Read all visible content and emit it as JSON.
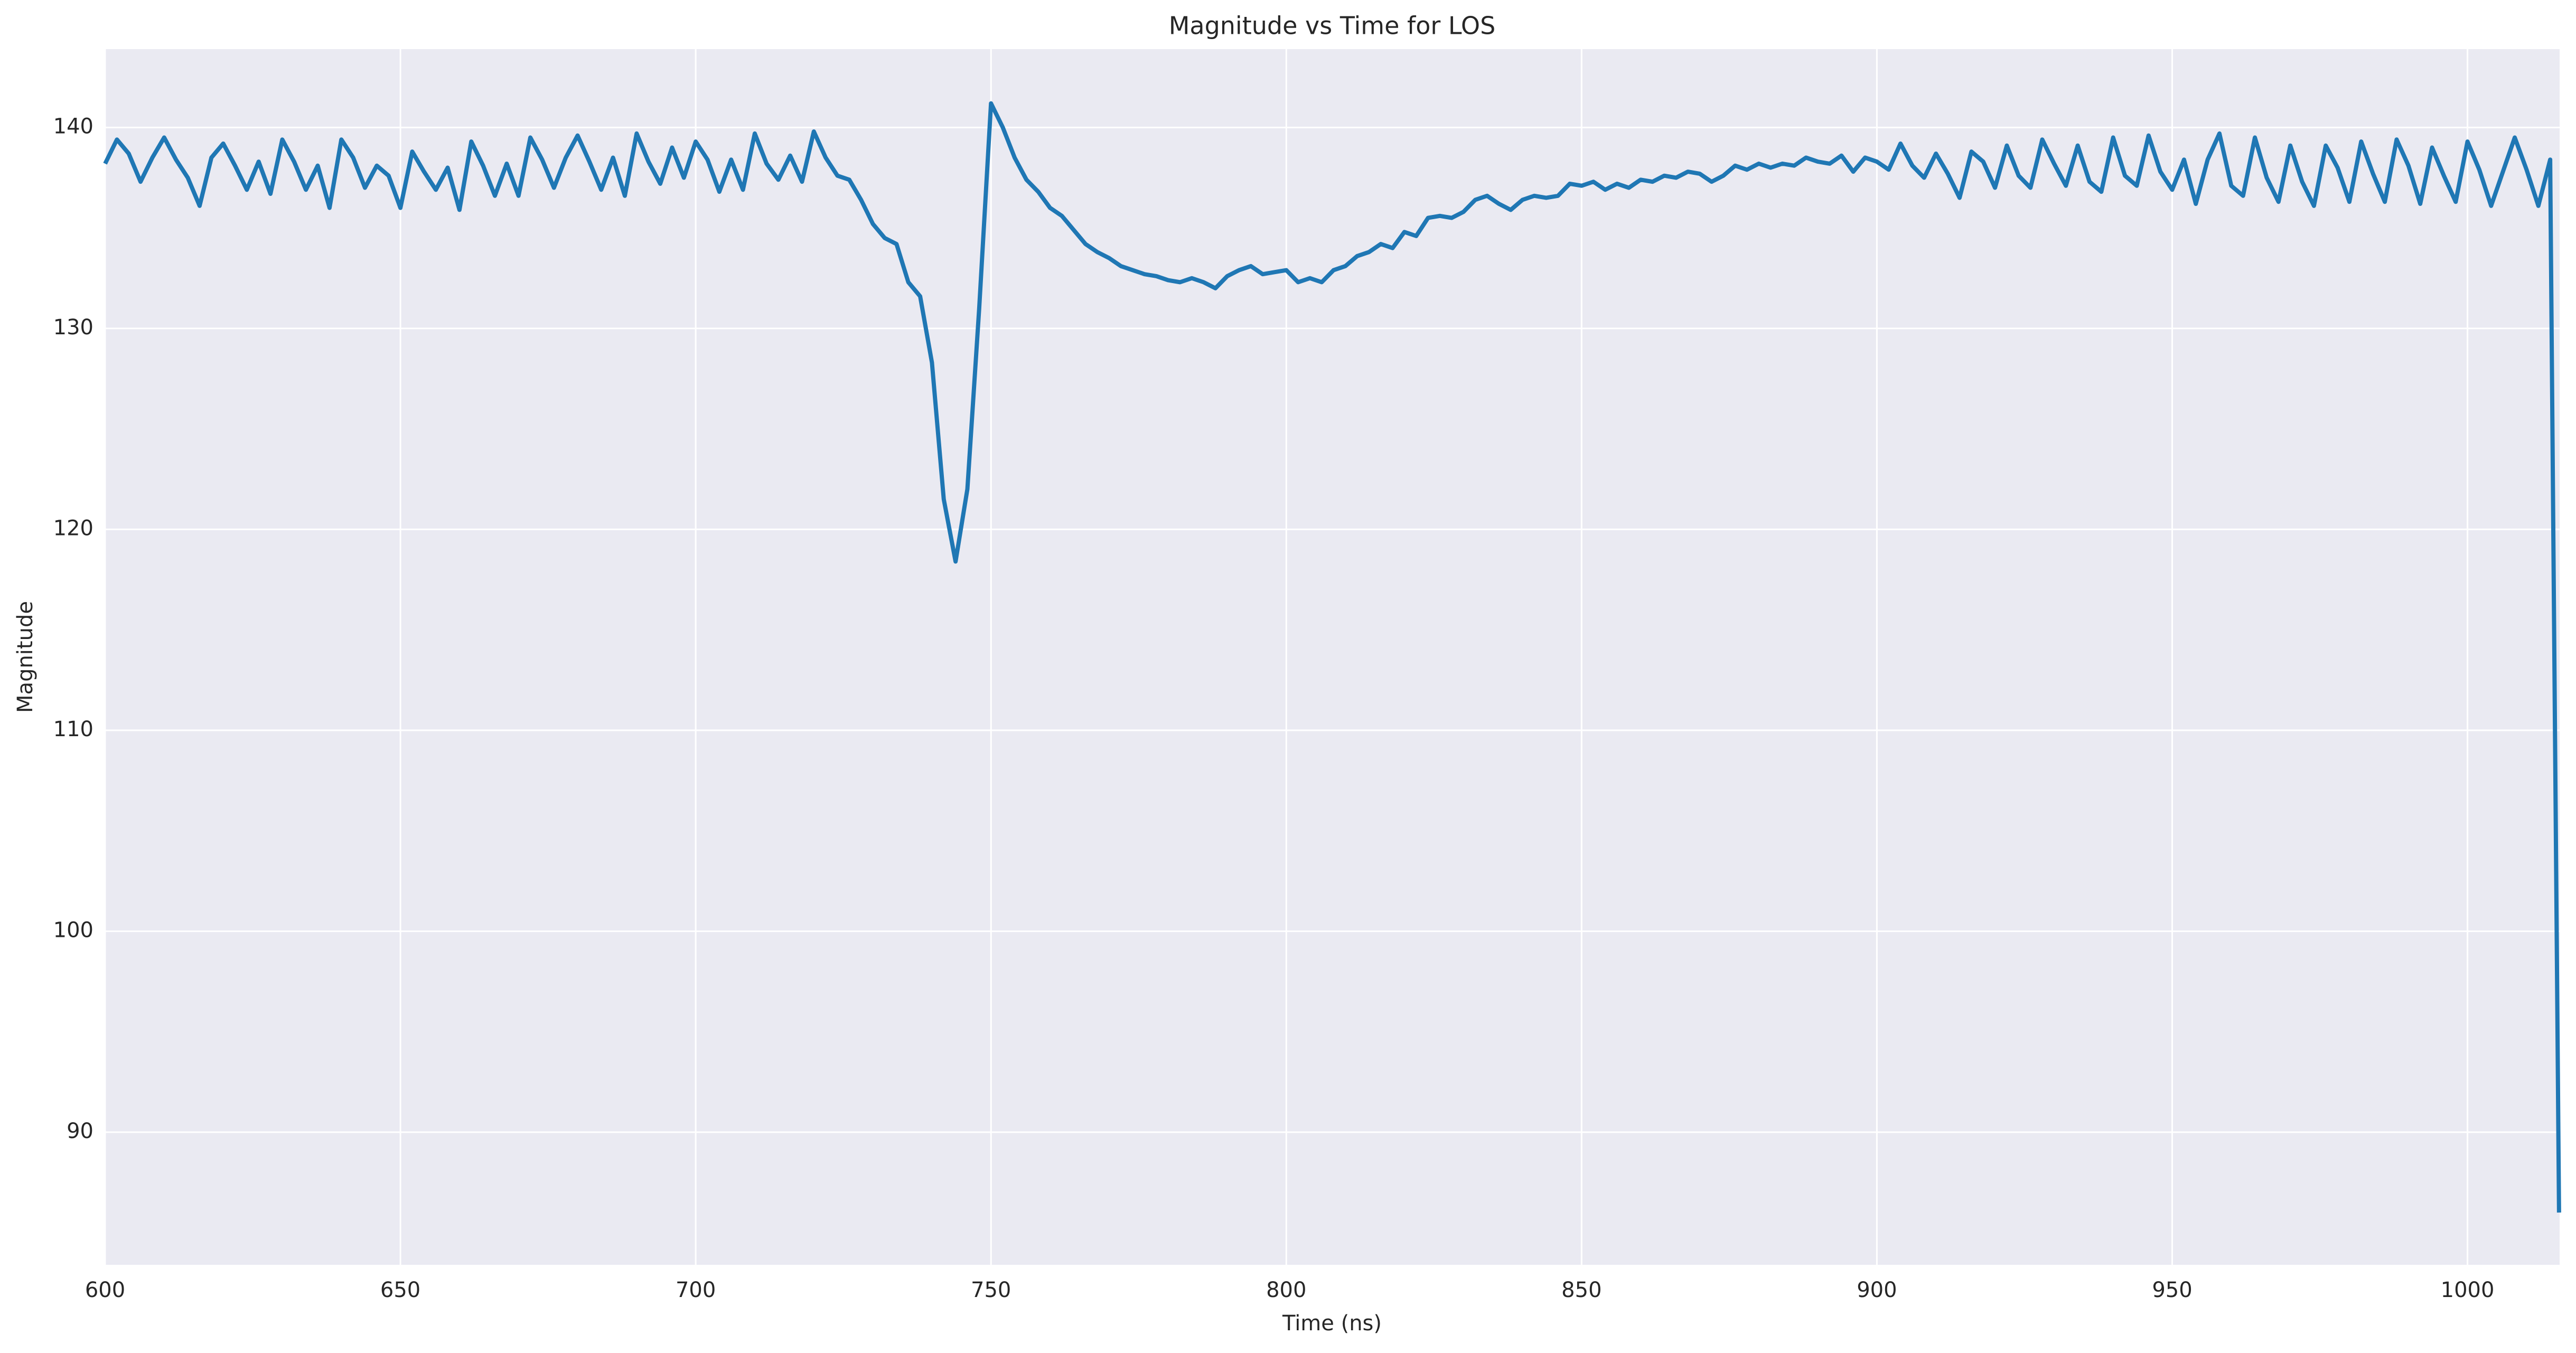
{
  "chart_data": {
    "type": "line",
    "title": "Magnitude vs Time for LOS",
    "x_label": "Time (ns)",
    "y_label": "Magnitude",
    "x": [
      600,
      602,
      604,
      606,
      608,
      610,
      612,
      614,
      616,
      618,
      620,
      622,
      624,
      626,
      628,
      630,
      632,
      634,
      636,
      638,
      640,
      642,
      644,
      646,
      648,
      650,
      652,
      654,
      656,
      658,
      660,
      662,
      664,
      666,
      668,
      670,
      672,
      674,
      676,
      678,
      680,
      682,
      684,
      686,
      688,
      690,
      692,
      694,
      696,
      698,
      700,
      702,
      704,
      706,
      708,
      710,
      712,
      714,
      716,
      718,
      720,
      722,
      724,
      726,
      728,
      730,
      732,
      734,
      736,
      738,
      740,
      742,
      744,
      746,
      748,
      750,
      752,
      754,
      756,
      758,
      760,
      762,
      764,
      766,
      768,
      770,
      772,
      774,
      776,
      778,
      780,
      782,
      784,
      786,
      788,
      790,
      792,
      794,
      796,
      798,
      800,
      802,
      804,
      806,
      808,
      810,
      812,
      814,
      816,
      818,
      820,
      822,
      824,
      826,
      828,
      830,
      832,
      834,
      836,
      838,
      840,
      842,
      844,
      846,
      848,
      850,
      852,
      854,
      856,
      858,
      860,
      862,
      864,
      866,
      868,
      870,
      872,
      874,
      876,
      878,
      880,
      882,
      884,
      886,
      888,
      890,
      892,
      894,
      896,
      898,
      900,
      902,
      904,
      906,
      908,
      910,
      912,
      914,
      916,
      918,
      920,
      922,
      924,
      926,
      928,
      930,
      932,
      934,
      936,
      938,
      940,
      942,
      944,
      946,
      948,
      950,
      952,
      954,
      956,
      958,
      960,
      962,
      964,
      966,
      968,
      970,
      972,
      974,
      976,
      978,
      980,
      982,
      984,
      986,
      988,
      990,
      992,
      994,
      996,
      998,
      1000,
      1002,
      1004,
      1006,
      1008,
      1010,
      1012,
      1014,
      1015.5
    ],
    "series": [
      {
        "name": "LOS",
        "color": "#1f77b4",
        "values": [
          138.2,
          139.4,
          138.7,
          137.3,
          138.5,
          139.5,
          138.4,
          137.5,
          136.1,
          138.5,
          139.2,
          138.1,
          136.9,
          138.3,
          136.7,
          139.4,
          138.3,
          136.9,
          138.1,
          136.0,
          139.4,
          138.5,
          137.0,
          138.1,
          137.6,
          136.0,
          138.8,
          137.8,
          136.9,
          138.0,
          135.9,
          139.3,
          138.1,
          136.6,
          138.2,
          136.6,
          139.5,
          138.4,
          137.0,
          138.5,
          139.6,
          138.3,
          136.9,
          138.5,
          136.6,
          139.7,
          138.3,
          137.2,
          139.0,
          137.5,
          139.3,
          138.4,
          136.8,
          138.4,
          136.9,
          139.7,
          138.2,
          137.4,
          138.6,
          137.3,
          139.8,
          138.5,
          137.6,
          137.4,
          136.4,
          135.2,
          134.5,
          134.2,
          132.3,
          131.6,
          128.3,
          121.5,
          118.4,
          122.0,
          131.0,
          141.2,
          140.0,
          138.5,
          137.4,
          136.8,
          136.0,
          135.6,
          134.9,
          134.2,
          133.8,
          133.5,
          133.1,
          132.9,
          132.7,
          132.6,
          132.4,
          132.3,
          132.5,
          132.3,
          132.0,
          132.6,
          132.9,
          133.1,
          132.7,
          132.8,
          132.9,
          132.3,
          132.5,
          132.3,
          132.9,
          133.1,
          133.6,
          133.8,
          134.2,
          134.0,
          134.8,
          134.6,
          135.5,
          135.6,
          135.5,
          135.8,
          136.4,
          136.6,
          136.2,
          135.9,
          136.4,
          136.6,
          136.5,
          136.6,
          137.2,
          137.1,
          137.3,
          136.9,
          137.2,
          137.0,
          137.4,
          137.3,
          137.6,
          137.5,
          137.8,
          137.7,
          137.3,
          137.6,
          138.1,
          137.9,
          138.2,
          138.0,
          138.2,
          138.1,
          138.5,
          138.3,
          138.2,
          138.6,
          137.8,
          138.5,
          138.3,
          137.9,
          139.2,
          138.1,
          137.5,
          138.7,
          137.7,
          136.5,
          138.8,
          138.3,
          137.0,
          139.1,
          137.6,
          137.0,
          139.4,
          138.2,
          137.1,
          139.1,
          137.3,
          136.8,
          139.5,
          137.6,
          137.1,
          139.6,
          137.8,
          136.9,
          138.4,
          136.2,
          138.4,
          139.7,
          137.1,
          136.6,
          139.5,
          137.5,
          136.3,
          139.1,
          137.3,
          136.1,
          139.1,
          138.0,
          136.3,
          139.3,
          137.7,
          136.3,
          139.4,
          138.1,
          136.2,
          139.0,
          137.6,
          136.3,
          139.3,
          137.9,
          136.1,
          137.8,
          139.5,
          137.9,
          136.1,
          138.4,
          86.0
        ]
      }
    ],
    "xlim": [
      600,
      1015.6
    ],
    "ylim": [
      83.4,
      143.9
    ],
    "xticks": [
      600,
      650,
      700,
      750,
      800,
      850,
      900,
      950,
      1000
    ],
    "yticks": [
      90,
      100,
      110,
      120,
      130,
      140
    ],
    "grid": true
  }
}
